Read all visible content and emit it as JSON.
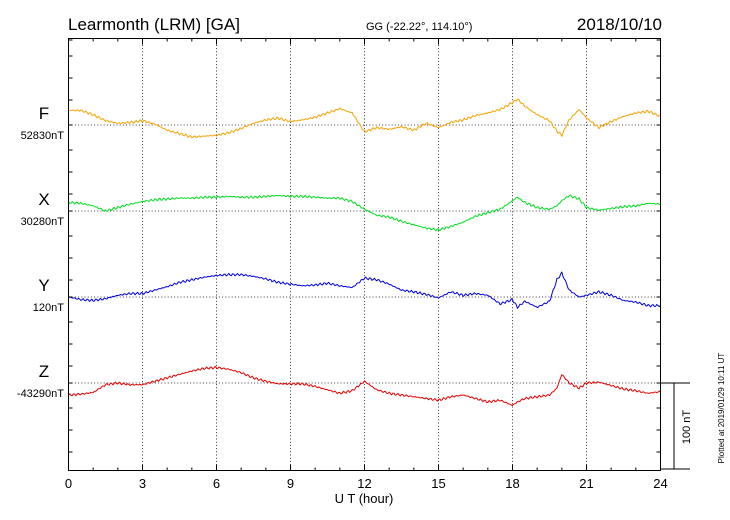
{
  "header": {
    "station": "Learmonth (LRM)  [GA]",
    "coords": "GG (-22.22°, 114.10°)",
    "date": "2018/10/10"
  },
  "side_note": "Plotted at 2019/01/29 10:11 UT",
  "scale_label": "100 nT",
  "chart_data": {
    "type": "line",
    "title": "Learmonth (LRM)  [GA]",
    "xlabel": "U T (hour)",
    "xlim": [
      0,
      24
    ],
    "x_ticks": [
      "0",
      "3",
      "6",
      "9",
      "12",
      "15",
      "18",
      "21",
      "24"
    ],
    "grid": true,
    "scale_bar_nT": 100,
    "series": [
      {
        "name": "F",
        "baseline_label": "52830nT",
        "baseline": 52830,
        "color": "#f5a300",
        "x": [
          0,
          0.5,
          1,
          1.5,
          2,
          2.5,
          3,
          3.5,
          4,
          4.5,
          5,
          5.5,
          6,
          6.5,
          7,
          7.5,
          8,
          8.5,
          9,
          9.5,
          10,
          10.5,
          11,
          11.5,
          12,
          12.5,
          13,
          13.5,
          14,
          14.5,
          15,
          15.5,
          16,
          16.5,
          17,
          17.5,
          18,
          18.2,
          18.5,
          19,
          19.5,
          19.8,
          20,
          20.3,
          20.7,
          21,
          21.5,
          22,
          22.5,
          23,
          23.5,
          24
        ],
        "y": [
          17,
          17,
          12,
          5,
          2,
          3,
          5,
          1,
          -6,
          -10,
          -14,
          -13,
          -12,
          -9,
          -4,
          2,
          6,
          8,
          4,
          6,
          9,
          14,
          19,
          14,
          -8,
          -3,
          -5,
          -2,
          -6,
          2,
          -3,
          3,
          6,
          11,
          14,
          18,
          26,
          30,
          22,
          12,
          5,
          -7,
          -12,
          6,
          18,
          8,
          -3,
          4,
          10,
          14,
          16,
          10
        ]
      },
      {
        "name": "X",
        "baseline_label": "30280nT",
        "baseline": 30280,
        "color": "#00e020",
        "x": [
          0,
          0.5,
          1,
          1.5,
          2,
          2.5,
          3,
          3.5,
          4,
          4.5,
          5,
          5.5,
          6,
          6.5,
          7,
          7.5,
          8,
          8.5,
          9,
          9.5,
          10,
          10.5,
          11,
          11.5,
          12,
          12.5,
          13,
          13.5,
          14,
          14.5,
          15,
          15.5,
          16,
          16.5,
          17,
          17.5,
          18,
          18.2,
          18.5,
          19,
          19.5,
          19.8,
          20,
          20.3,
          20.7,
          21,
          21.5,
          22,
          22.5,
          23,
          23.5,
          24
        ],
        "y": [
          10,
          9,
          6,
          0,
          4,
          8,
          11,
          13,
          14,
          15,
          15,
          16,
          16,
          17,
          16,
          16,
          17,
          18,
          17,
          17,
          16,
          15,
          15,
          11,
          2,
          -5,
          -7,
          -12,
          -16,
          -20,
          -22,
          -18,
          -13,
          -6,
          -2,
          2,
          12,
          16,
          10,
          4,
          2,
          6,
          12,
          18,
          14,
          4,
          1,
          3,
          5,
          6,
          9,
          8
        ]
      },
      {
        "name": "Y",
        "baseline_label": "120nT",
        "baseline": 120,
        "color": "#0000e0",
        "x": [
          0,
          0.5,
          1,
          1.5,
          2,
          2.5,
          3,
          3.5,
          4,
          4.5,
          5,
          5.5,
          6,
          6.5,
          7,
          7.5,
          8,
          8.5,
          9,
          9.5,
          10,
          10.5,
          11,
          11.5,
          12,
          12.5,
          13,
          13.5,
          14,
          14.5,
          15,
          15.5,
          16,
          16.5,
          17,
          17.5,
          18,
          18.2,
          18.5,
          19,
          19.5,
          19.8,
          20,
          20.3,
          20.7,
          21,
          21.5,
          22,
          22.5,
          23,
          23.5,
          24
        ],
        "y": [
          0,
          -3,
          -4,
          -2,
          2,
          4,
          4,
          8,
          12,
          17,
          20,
          23,
          25,
          26,
          26,
          24,
          21,
          17,
          15,
          13,
          14,
          16,
          13,
          11,
          22,
          20,
          15,
          8,
          6,
          3,
          -1,
          6,
          2,
          4,
          2,
          -8,
          -3,
          -12,
          -5,
          -12,
          -5,
          20,
          28,
          8,
          0,
          2,
          6,
          2,
          -4,
          -6,
          -10,
          -10
        ]
      },
      {
        "name": "Z",
        "baseline_label": "-43290nT",
        "baseline": -43290,
        "color": "#e80000",
        "x": [
          0,
          0.5,
          1,
          1.5,
          2,
          2.5,
          3,
          3.5,
          4,
          4.5,
          5,
          5.5,
          6,
          6.5,
          7,
          7.5,
          8,
          8.5,
          9,
          9.5,
          10,
          10.5,
          11,
          11.5,
          12,
          12.5,
          13,
          13.5,
          14,
          14.5,
          15,
          15.5,
          16,
          16.5,
          17,
          17.5,
          18,
          18.2,
          18.5,
          19,
          19.5,
          19.8,
          20,
          20.3,
          20.7,
          21,
          21.5,
          22,
          22.5,
          23,
          23.5,
          24
        ],
        "y": [
          -14,
          -13,
          -11,
          -2,
          0,
          -2,
          -2,
          2,
          6,
          10,
          14,
          17,
          18,
          16,
          12,
          6,
          2,
          -1,
          -1,
          -1,
          -4,
          -8,
          -12,
          -9,
          2,
          -8,
          -12,
          -14,
          -16,
          -18,
          -20,
          -16,
          -14,
          -18,
          -22,
          -20,
          -26,
          -22,
          -18,
          -16,
          -14,
          -6,
          10,
          0,
          -6,
          0,
          1,
          -3,
          -7,
          -9,
          -12,
          -10
        ]
      }
    ]
  }
}
